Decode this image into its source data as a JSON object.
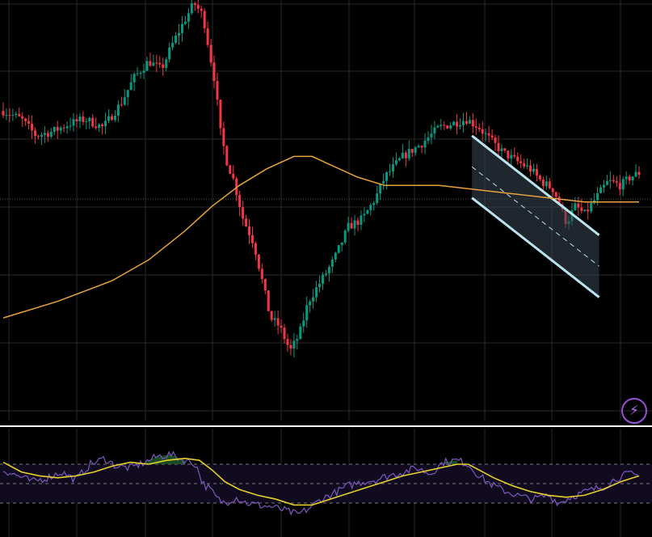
{
  "colors": {
    "background": "#000000",
    "grid": "#2a2a2e",
    "up": "#089981",
    "down": "#f23645",
    "ma": "#e8a33d",
    "channel_line": "#b8e3ef",
    "channel_fill": "#3b4652",
    "divider": "#ffffff",
    "rsi_line": "#7e57c2",
    "rsi_ma": "#e6d02c",
    "rsi_band": "#110b1f",
    "flash": "#9b4fd6"
  },
  "icons": {
    "flash": "lightning-icon"
  },
  "flash_glyph": "⚡",
  "chart_data": [
    {
      "type": "candlestick",
      "title": "",
      "xlabel": "",
      "ylabel": "",
      "grid": true,
      "ylim": [
        0,
        100
      ],
      "candle_count": 200,
      "price_path": [
        [
          0,
          74
        ],
        [
          10,
          72
        ],
        [
          18,
          68
        ],
        [
          27,
          69
        ],
        [
          37,
          71
        ],
        [
          45,
          72
        ],
        [
          55,
          70
        ],
        [
          65,
          76
        ],
        [
          72,
          82
        ],
        [
          80,
          86
        ],
        [
          87,
          84
        ],
        [
          93,
          90
        ],
        [
          100,
          96
        ],
        [
          105,
          100
        ],
        [
          110,
          97
        ],
        [
          114,
          87
        ],
        [
          117,
          80
        ],
        [
          119,
          70
        ],
        [
          123,
          62
        ],
        [
          127,
          57
        ],
        [
          132,
          48
        ],
        [
          138,
          42
        ],
        [
          143,
          32
        ],
        [
          147,
          24
        ],
        [
          152,
          22
        ],
        [
          158,
          16
        ],
        [
          163,
          20
        ],
        [
          168,
          28
        ],
        [
          175,
          33
        ],
        [
          182,
          38
        ],
        [
          190,
          46
        ],
        [
          198,
          48
        ],
        [
          205,
          53
        ],
        [
          210,
          58
        ],
        [
          220,
          63
        ],
        [
          230,
          66
        ],
        [
          240,
          70
        ],
        [
          255,
          72
        ],
        [
          262,
          70
        ],
        [
          268,
          67
        ],
        [
          275,
          64
        ],
        [
          282,
          62
        ],
        [
          290,
          60
        ],
        [
          296,
          57
        ],
        [
          303,
          55
        ],
        [
          310,
          47
        ],
        [
          315,
          51
        ],
        [
          320,
          49
        ],
        [
          328,
          54
        ],
        [
          333,
          57
        ],
        [
          340,
          56
        ],
        [
          345,
          58
        ],
        [
          350,
          59
        ]
      ],
      "ma_path": [
        [
          0,
          24
        ],
        [
          30,
          28
        ],
        [
          60,
          33
        ],
        [
          80,
          38
        ],
        [
          100,
          45
        ],
        [
          115,
          51
        ],
        [
          130,
          56
        ],
        [
          145,
          60
        ],
        [
          160,
          63
        ],
        [
          170,
          63
        ],
        [
          180,
          61
        ],
        [
          195,
          58
        ],
        [
          210,
          56
        ],
        [
          225,
          56
        ],
        [
          240,
          56
        ],
        [
          260,
          55
        ],
        [
          280,
          54
        ],
        [
          300,
          53
        ],
        [
          320,
          52
        ],
        [
          340,
          52
        ],
        [
          350,
          52
        ]
      ],
      "channel": {
        "top": [
          [
            258,
            68
          ],
          [
            328,
            44
          ]
        ],
        "bottom": [
          [
            258,
            53
          ],
          [
            328,
            29
          ]
        ]
      }
    },
    {
      "type": "line",
      "title": "",
      "xlabel": "",
      "ylabel": "",
      "grid": true,
      "ylim": [
        0,
        100
      ],
      "bands": [
        30,
        50,
        70
      ],
      "series": [
        {
          "values": [
            [
              0,
              64
            ],
            [
              8,
              58
            ],
            [
              16,
              52
            ],
            [
              24,
              56
            ],
            [
              32,
              62
            ],
            [
              40,
              54
            ],
            [
              48,
              70
            ],
            [
              56,
              76
            ],
            [
              62,
              68
            ],
            [
              70,
              66
            ],
            [
              78,
              72
            ],
            [
              85,
              78
            ],
            [
              92,
              80
            ],
            [
              100,
              74
            ],
            [
              106,
              70
            ],
            [
              110,
              50
            ],
            [
              114,
              44
            ],
            [
              118,
              34
            ],
            [
              122,
              30
            ],
            [
              128,
              36
            ],
            [
              134,
              30
            ],
            [
              140,
              28
            ],
            [
              148,
              26
            ],
            [
              156,
              22
            ],
            [
              162,
              18
            ],
            [
              168,
              24
            ],
            [
              175,
              34
            ],
            [
              182,
              40
            ],
            [
              190,
              48
            ],
            [
              198,
              52
            ],
            [
              205,
              54
            ],
            [
              212,
              58
            ],
            [
              220,
              62
            ],
            [
              228,
              66
            ],
            [
              235,
              60
            ],
            [
              242,
              72
            ],
            [
              250,
              74
            ],
            [
              256,
              70
            ],
            [
              262,
              58
            ],
            [
              268,
              50
            ],
            [
              274,
              44
            ],
            [
              280,
              40
            ],
            [
              286,
              36
            ],
            [
              292,
              34
            ],
            [
              300,
              38
            ],
            [
              306,
              30
            ],
            [
              312,
              36
            ],
            [
              318,
              40
            ],
            [
              325,
              44
            ],
            [
              332,
              48
            ],
            [
              338,
              56
            ],
            [
              344,
              60
            ],
            [
              350,
              58
            ]
          ]
        },
        {
          "values": [
            [
              0,
              72
            ],
            [
              10,
              62
            ],
            [
              20,
              58
            ],
            [
              30,
              56
            ],
            [
              40,
              58
            ],
            [
              50,
              62
            ],
            [
              60,
              68
            ],
            [
              70,
              72
            ],
            [
              80,
              70
            ],
            [
              90,
              74
            ],
            [
              100,
              76
            ],
            [
              108,
              74
            ],
            [
              115,
              64
            ],
            [
              122,
              52
            ],
            [
              130,
              44
            ],
            [
              140,
              38
            ],
            [
              150,
              34
            ],
            [
              160,
              28
            ],
            [
              170,
              28
            ],
            [
              180,
              34
            ],
            [
              190,
              40
            ],
            [
              200,
              46
            ],
            [
              210,
              52
            ],
            [
              220,
              58
            ],
            [
              230,
              62
            ],
            [
              240,
              66
            ],
            [
              250,
              70
            ],
            [
              256,
              70
            ],
            [
              262,
              64
            ],
            [
              270,
              56
            ],
            [
              280,
              48
            ],
            [
              290,
              42
            ],
            [
              300,
              38
            ],
            [
              310,
              36
            ],
            [
              320,
              38
            ],
            [
              330,
              44
            ],
            [
              340,
              52
            ],
            [
              350,
              58
            ]
          ]
        }
      ]
    }
  ]
}
